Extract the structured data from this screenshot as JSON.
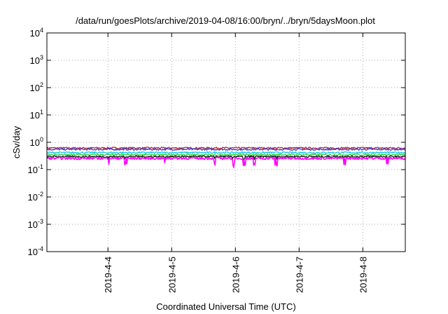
{
  "chart_data": {
    "type": "line",
    "title": "/data/run/goesPlots/archive/2019-04-08/16:00/bryn/../bryn/5daysMoon.plot",
    "xlabel": "Coordinated Universal Time (UTC)",
    "ylabel": "cSv/day",
    "yscale": "log",
    "ylim": [
      0.0001,
      10000
    ],
    "xlim": [
      "2019-04-03T01:00",
      "2019-04-08T16:00"
    ],
    "grid": true,
    "x_ticks": [
      "2019-4-4",
      "2019-4-5",
      "2019-4-6",
      "2019-4-7",
      "2019-4-8"
    ],
    "y_ticks": [
      {
        "base": "10",
        "exp": "-4"
      },
      {
        "base": "10",
        "exp": "-3"
      },
      {
        "base": "10",
        "exp": "-2"
      },
      {
        "base": "10",
        "exp": "-1"
      },
      {
        "base": "10",
        "exp": "0"
      },
      {
        "base": "10",
        "exp": "1"
      },
      {
        "base": "10",
        "exp": "2"
      },
      {
        "base": "10",
        "exp": "3"
      },
      {
        "base": "10",
        "exp": "4"
      }
    ],
    "series": [
      {
        "color": "#c0203a",
        "level": 0.62
      },
      {
        "color": "#2a3fd6",
        "level": 0.55
      },
      {
        "color": "#18c8e0",
        "level": 0.42
      },
      {
        "color": "#2ecc40",
        "level": 0.35
      },
      {
        "color": "#111111",
        "level": 0.3
      },
      {
        "color": "#ff00ff",
        "level": 0.26
      }
    ]
  }
}
